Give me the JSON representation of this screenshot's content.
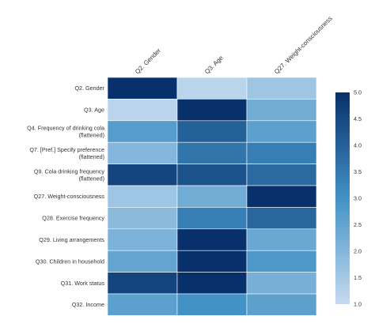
{
  "chart_data": {
    "type": "heatmap",
    "columns": [
      "Q2. Gender",
      "Q3. Age",
      "Q27. Weight-consciousness"
    ],
    "rows": [
      [
        "Q2. Gender"
      ],
      [
        "Q3. Age"
      ],
      [
        "Q4. Frequency of drinking cola",
        "(flattened)"
      ],
      [
        "Q7. [Pref.] Specify preference",
        "(flattened)"
      ],
      [
        "Q9. Cola drinking frequency",
        "(flattened)"
      ],
      [
        "Q27. Weight-consciousness"
      ],
      [
        "Q28. Exercise frequency"
      ],
      [
        "Q29. Living arrangements"
      ],
      [
        "Q30. Children in household"
      ],
      [
        "Q31. Work status"
      ],
      [
        "Q32. Income"
      ]
    ],
    "values": [
      [
        5.0,
        1.2,
        1.6
      ],
      [
        1.2,
        5.0,
        2.3
      ],
      [
        2.7,
        4.0,
        2.6
      ],
      [
        2.0,
        3.6,
        3.4
      ],
      [
        4.6,
        4.3,
        3.8
      ],
      [
        1.6,
        2.3,
        5.0
      ],
      [
        1.9,
        3.4,
        3.9
      ],
      [
        2.1,
        5.0,
        2.4
      ],
      [
        2.5,
        5.0,
        2.8
      ],
      [
        4.6,
        5.0,
        2.2
      ],
      [
        2.6,
        3.0,
        2.6
      ]
    ],
    "colorbar": {
      "min": 1.0,
      "max": 5.0,
      "ticks": [
        "1.0",
        "1.5",
        "2.0",
        "2.5",
        "3.0",
        "3.5",
        "4.0",
        "4.5",
        "5.0"
      ],
      "low_color": "#c6dbef",
      "high_color": "#08306b"
    },
    "title": "",
    "xlabel": "",
    "ylabel": ""
  }
}
